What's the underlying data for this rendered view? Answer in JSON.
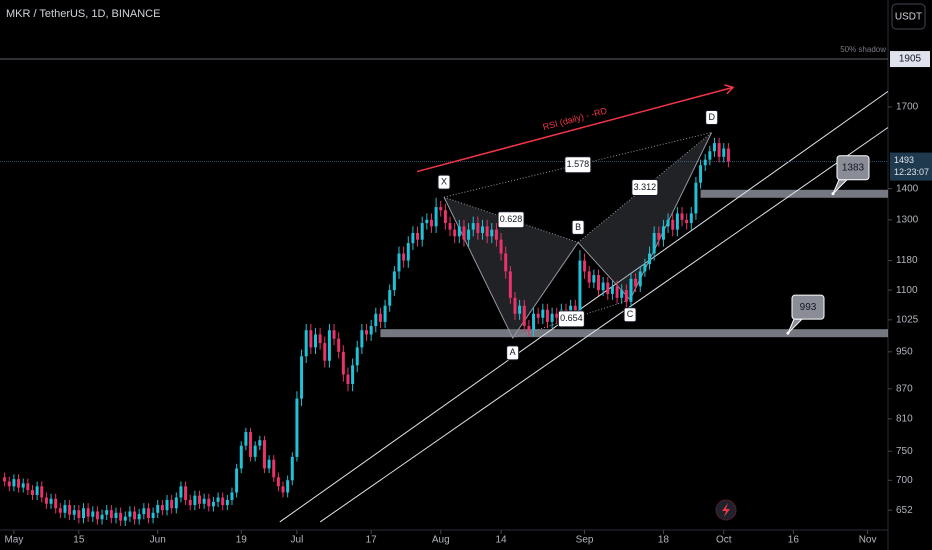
{
  "chart_data": {
    "type": "candlestick",
    "title": "MKR / TetherUS, 1D, BINANCE",
    "currency": "USDT",
    "log_scale": true,
    "xlim": [
      -3,
      188.4
    ],
    "ylim": [
      622,
      2192
    ],
    "xticks": [
      {
        "value": 0,
        "label": "May"
      },
      {
        "value": 14,
        "label": "15"
      },
      {
        "value": 31,
        "label": "Jun"
      },
      {
        "value": 49,
        "label": "19"
      },
      {
        "value": 61,
        "label": "Jul"
      },
      {
        "value": 77,
        "label": "17"
      },
      {
        "value": 92,
        "label": "Aug"
      },
      {
        "value": 105,
        "label": "14"
      },
      {
        "value": 123,
        "label": "Sep"
      },
      {
        "value": 140,
        "label": "18"
      },
      {
        "value": 153,
        "label": "Oct"
      },
      {
        "value": 168,
        "label": "16"
      },
      {
        "value": 184,
        "label": "Nov"
      }
    ],
    "yticks": [
      652,
      700,
      750,
      810,
      870,
      950,
      1025,
      1100,
      1180,
      1300,
      1400,
      1700
    ],
    "up_color": "#22c1d6",
    "down_color": "#e8336b",
    "x": [
      -2,
      -1,
      0,
      1,
      2,
      3,
      4,
      5,
      6,
      7,
      8,
      9,
      10,
      11,
      12,
      13,
      14,
      15,
      16,
      17,
      18,
      19,
      20,
      21,
      22,
      23,
      24,
      25,
      26,
      27,
      28,
      29,
      30,
      31,
      32,
      33,
      34,
      35,
      36,
      37,
      38,
      39,
      40,
      41,
      42,
      43,
      44,
      45,
      46,
      47,
      48,
      49,
      50,
      51,
      52,
      53,
      54,
      55,
      56,
      57,
      58,
      59,
      60,
      61,
      62,
      63,
      64,
      65,
      66,
      67,
      68,
      69,
      70,
      71,
      72,
      73,
      74,
      75,
      76,
      77,
      78,
      79,
      80,
      81,
      82,
      83,
      84,
      85,
      86,
      87,
      88,
      89,
      90,
      91,
      92,
      93,
      94,
      95,
      96,
      97,
      98,
      99,
      100,
      101,
      102,
      103,
      104,
      105,
      106,
      107,
      108,
      109,
      110,
      111,
      112,
      113,
      114,
      115,
      116,
      117,
      118,
      119,
      120,
      121,
      122,
      123,
      124,
      125,
      126,
      127,
      128,
      129,
      130,
      131,
      132,
      133,
      134,
      135,
      136,
      137,
      138,
      139,
      140,
      141,
      142,
      143,
      144,
      145,
      146,
      147,
      148,
      149,
      150,
      151,
      152,
      153,
      154
    ],
    "candles": [
      [
        705,
        713,
        690,
        698
      ],
      [
        698,
        706,
        682,
        690
      ],
      [
        690,
        710,
        682,
        702
      ],
      [
        702,
        710,
        680,
        688
      ],
      [
        688,
        703,
        680,
        695
      ],
      [
        695,
        703,
        676,
        684
      ],
      [
        684,
        692,
        668,
        676
      ],
      [
        676,
        698,
        668,
        690
      ],
      [
        690,
        698,
        664,
        672
      ],
      [
        672,
        680,
        654,
        662
      ],
      [
        662,
        678,
        654,
        670
      ],
      [
        670,
        678,
        647,
        655
      ],
      [
        655,
        663,
        640,
        648
      ],
      [
        648,
        668,
        640,
        660
      ],
      [
        660,
        668,
        637,
        645
      ],
      [
        645,
        660,
        637,
        652
      ],
      [
        652,
        660,
        632,
        640
      ],
      [
        640,
        663,
        632,
        655
      ],
      [
        655,
        663,
        634,
        642
      ],
      [
        642,
        658,
        634,
        650
      ],
      [
        650,
        658,
        630,
        638
      ],
      [
        638,
        653,
        630,
        645
      ],
      [
        645,
        660,
        637,
        652
      ],
      [
        652,
        660,
        632,
        640
      ],
      [
        640,
        656,
        632,
        648
      ],
      [
        648,
        656,
        628,
        636
      ],
      [
        636,
        650,
        628,
        642
      ],
      [
        642,
        658,
        634,
        650
      ],
      [
        650,
        658,
        630,
        638
      ],
      [
        638,
        654,
        630,
        646
      ],
      [
        646,
        663,
        638,
        655
      ],
      [
        655,
        663,
        632,
        640
      ],
      [
        640,
        656,
        632,
        648
      ],
      [
        648,
        668,
        640,
        660
      ],
      [
        660,
        668,
        644,
        652
      ],
      [
        652,
        676,
        644,
        668
      ],
      [
        668,
        676,
        647,
        655
      ],
      [
        655,
        680,
        647,
        672
      ],
      [
        672,
        698,
        664,
        690
      ],
      [
        690,
        698,
        660,
        668
      ],
      [
        668,
        676,
        652,
        660
      ],
      [
        660,
        683,
        652,
        675
      ],
      [
        675,
        683,
        654,
        662
      ],
      [
        662,
        678,
        654,
        670
      ],
      [
        670,
        678,
        650,
        658
      ],
      [
        658,
        673,
        650,
        665
      ],
      [
        665,
        680,
        657,
        672
      ],
      [
        672,
        680,
        652,
        660
      ],
      [
        660,
        676,
        652,
        668
      ],
      [
        668,
        688,
        660,
        680
      ],
      [
        680,
        728,
        672,
        720
      ],
      [
        720,
        768,
        712,
        760
      ],
      [
        760,
        793,
        752,
        785
      ],
      [
        785,
        793,
        732,
        740
      ],
      [
        740,
        768,
        732,
        760
      ],
      [
        760,
        778,
        752,
        770
      ],
      [
        770,
        778,
        712,
        720
      ],
      [
        720,
        743,
        712,
        735
      ],
      [
        735,
        743,
        697,
        705
      ],
      [
        705,
        713,
        682,
        690
      ],
      [
        690,
        698,
        672,
        680
      ],
      [
        680,
        708,
        672,
        700
      ],
      [
        700,
        748,
        692,
        740
      ],
      [
        740,
        865,
        732,
        850
      ],
      [
        850,
        955,
        835,
        940
      ],
      [
        940,
        1015,
        925,
        1000
      ],
      [
        1000,
        1015,
        945,
        960
      ],
      [
        960,
        1005,
        945,
        990
      ],
      [
        990,
        1005,
        955,
        970
      ],
      [
        970,
        985,
        915,
        930
      ],
      [
        930,
        1015,
        915,
        1000
      ],
      [
        1000,
        1015,
        965,
        980
      ],
      [
        980,
        995,
        935,
        950
      ],
      [
        950,
        965,
        885,
        900
      ],
      [
        900,
        915,
        865,
        880
      ],
      [
        880,
        935,
        865,
        920
      ],
      [
        920,
        975,
        905,
        960
      ],
      [
        960,
        1015,
        945,
        1000
      ],
      [
        1000,
        1015,
        975,
        990
      ],
      [
        990,
        1025,
        975,
        1010
      ],
      [
        1010,
        1055,
        995,
        1040
      ],
      [
        1040,
        1055,
        1005,
        1020
      ],
      [
        1020,
        1075,
        1005,
        1060
      ],
      [
        1060,
        1115,
        1045,
        1100
      ],
      [
        1100,
        1165,
        1085,
        1150
      ],
      [
        1150,
        1220,
        1130,
        1200
      ],
      [
        1200,
        1220,
        1160,
        1180
      ],
      [
        1180,
        1250,
        1160,
        1230
      ],
      [
        1230,
        1280,
        1210,
        1260
      ],
      [
        1260,
        1280,
        1220,
        1240
      ],
      [
        1240,
        1310,
        1220,
        1290
      ],
      [
        1290,
        1320,
        1270,
        1300
      ],
      [
        1300,
        1320,
        1260,
        1280
      ],
      [
        1280,
        1370,
        1260,
        1340
      ],
      [
        1340,
        1360,
        1310,
        1330
      ],
      [
        1330,
        1350,
        1270,
        1290
      ],
      [
        1290,
        1310,
        1250,
        1270
      ],
      [
        1270,
        1290,
        1230,
        1250
      ],
      [
        1250,
        1300,
        1230,
        1280
      ],
      [
        1280,
        1300,
        1220,
        1240
      ],
      [
        1240,
        1290,
        1220,
        1270
      ],
      [
        1270,
        1310,
        1250,
        1290
      ],
      [
        1290,
        1310,
        1240,
        1260
      ],
      [
        1260,
        1300,
        1240,
        1280
      ],
      [
        1280,
        1300,
        1230,
        1250
      ],
      [
        1250,
        1290,
        1230,
        1270
      ],
      [
        1270,
        1290,
        1220,
        1240
      ],
      [
        1240,
        1260,
        1180,
        1200
      ],
      [
        1200,
        1220,
        1130,
        1150
      ],
      [
        1150,
        1165,
        1065,
        1080
      ],
      [
        1080,
        1095,
        1025,
        1040
      ],
      [
        1040,
        1075,
        1025,
        1060
      ],
      [
        1060,
        1075,
        995,
        1010
      ],
      [
        1010,
        1025,
        985,
        1000
      ],
      [
        1000,
        1055,
        985,
        1040
      ],
      [
        1040,
        1055,
        1015,
        1030
      ],
      [
        1030,
        1065,
        1015,
        1050
      ],
      [
        1050,
        1065,
        1005,
        1020
      ],
      [
        1020,
        1055,
        1005,
        1040
      ],
      [
        1040,
        1055,
        1015,
        1030
      ],
      [
        1030,
        1065,
        1015,
        1050
      ],
      [
        1050,
        1065,
        1025,
        1040
      ],
      [
        1040,
        1075,
        1025,
        1060
      ],
      [
        1060,
        1075,
        1015,
        1030
      ],
      [
        1030,
        1210,
        1015,
        1180
      ],
      [
        1180,
        1200,
        1130,
        1150
      ],
      [
        1150,
        1165,
        1105,
        1120
      ],
      [
        1120,
        1155,
        1105,
        1140
      ],
      [
        1140,
        1155,
        1085,
        1100
      ],
      [
        1100,
        1135,
        1085,
        1120
      ],
      [
        1120,
        1135,
        1075,
        1090
      ],
      [
        1090,
        1125,
        1075,
        1110
      ],
      [
        1110,
        1125,
        1065,
        1080
      ],
      [
        1080,
        1115,
        1065,
        1100
      ],
      [
        1100,
        1115,
        1055,
        1070
      ],
      [
        1070,
        1145,
        1055,
        1130
      ],
      [
        1130,
        1145,
        1095,
        1110
      ],
      [
        1110,
        1165,
        1095,
        1150
      ],
      [
        1150,
        1185,
        1135,
        1170
      ],
      [
        1170,
        1220,
        1155,
        1200
      ],
      [
        1200,
        1280,
        1180,
        1260
      ],
      [
        1260,
        1280,
        1220,
        1240
      ],
      [
        1240,
        1300,
        1220,
        1280
      ],
      [
        1280,
        1320,
        1260,
        1300
      ],
      [
        1300,
        1320,
        1250,
        1270
      ],
      [
        1270,
        1340,
        1250,
        1320
      ],
      [
        1320,
        1340,
        1280,
        1300
      ],
      [
        1300,
        1320,
        1270,
        1290
      ],
      [
        1290,
        1340,
        1270,
        1320
      ],
      [
        1320,
        1440,
        1300,
        1420
      ],
      [
        1420,
        1500,
        1400,
        1480
      ],
      [
        1480,
        1520,
        1460,
        1500
      ],
      [
        1500,
        1550,
        1480,
        1530
      ],
      [
        1530,
        1580,
        1510,
        1560
      ],
      [
        1560,
        1580,
        1490,
        1510
      ],
      [
        1510,
        1560,
        1490,
        1540
      ],
      [
        1540,
        1560,
        1473,
        1493
      ]
    ],
    "highlight_line": {
      "value": 1905,
      "note": "50% shadow"
    },
    "last_price": 1493,
    "countdown": "12:23:07",
    "levels": [
      {
        "value": 993,
        "from": 79
      },
      {
        "value": 1383,
        "from": 148
      }
    ],
    "channel": [
      {
        "x": [
          57.3,
          188.4
        ],
        "y": [
          634,
          1764
        ]
      },
      {
        "x": [
          66,
          188.4
        ],
        "y": [
          634,
          1619
        ]
      }
    ],
    "divergence": {
      "label": "RSI (daily) - -RD",
      "x": [
        86.9,
        155
      ],
      "y": [
        1458,
        1781
      ]
    },
    "pattern": {
      "points": [
        {
          "label": "X",
          "x": 92.7,
          "y": 1372
        },
        {
          "label": "A",
          "x": 107.5,
          "y": 982
        },
        {
          "label": "B",
          "x": 121.6,
          "y": 1232
        },
        {
          "label": "C",
          "x": 132.8,
          "y": 1075
        },
        {
          "label": "D",
          "x": 150.4,
          "y": 1600
        }
      ],
      "ratios": [
        1.578,
        0.628,
        3.312,
        0.654
      ]
    }
  }
}
